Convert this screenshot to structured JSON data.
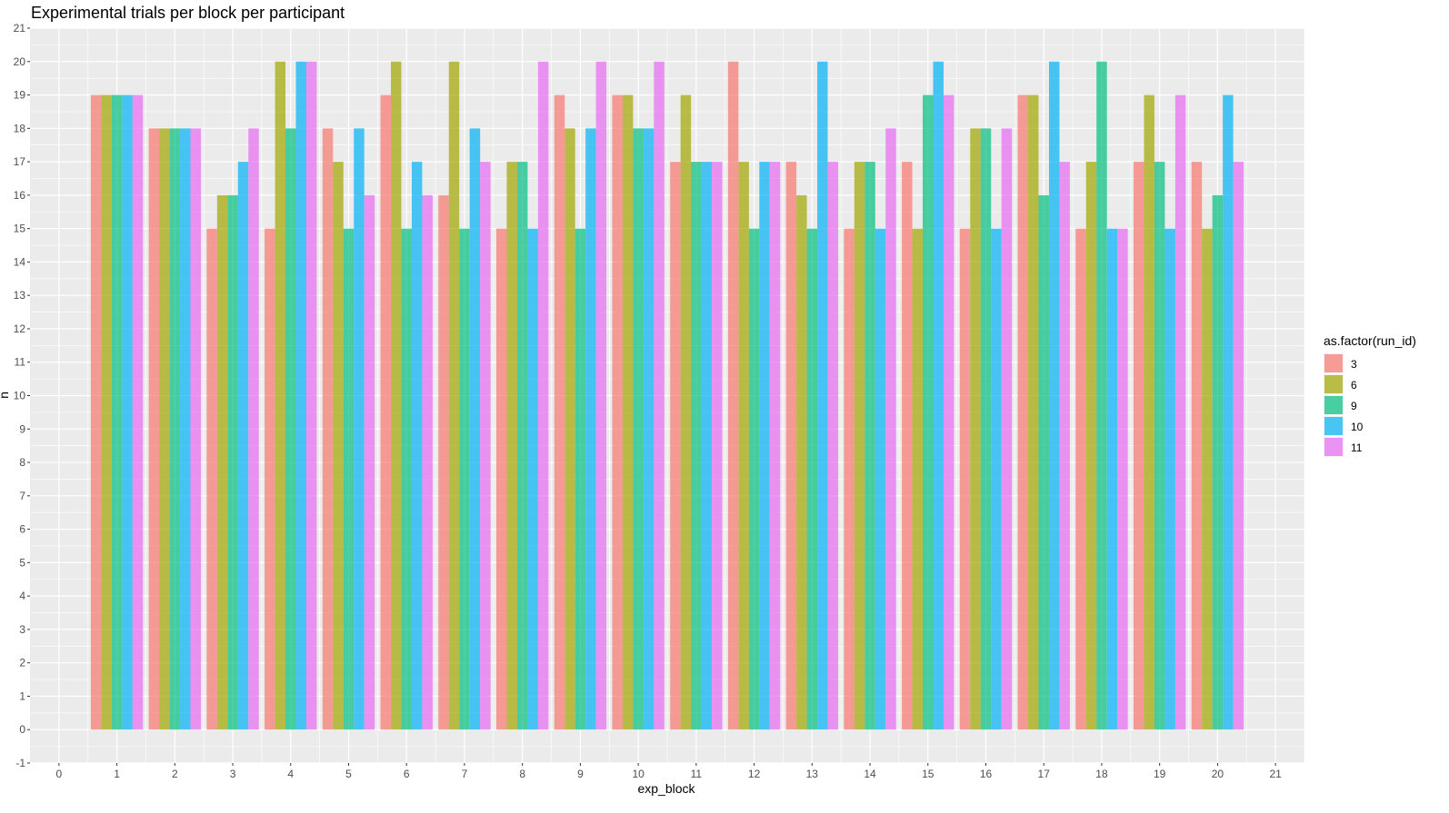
{
  "chart_data": {
    "type": "bar",
    "title": "Experimental trials per block per participant",
    "xlabel": "exp_block",
    "ylabel": "n",
    "xlim": [
      -0.5,
      21.5
    ],
    "ylim": [
      -1,
      21
    ],
    "x_ticks": [
      "0",
      "1",
      "2",
      "3",
      "4",
      "5",
      "6",
      "7",
      "8",
      "9",
      "10",
      "11",
      "12",
      "13",
      "14",
      "15",
      "16",
      "17",
      "18",
      "19",
      "20",
      "21"
    ],
    "y_ticks": [
      "-1",
      "0",
      "1",
      "2",
      "3",
      "4",
      "5",
      "6",
      "7",
      "8",
      "9",
      "10",
      "11",
      "12",
      "13",
      "14",
      "15",
      "16",
      "17",
      "18",
      "19",
      "20",
      "21"
    ],
    "categories": [
      1,
      2,
      3,
      4,
      5,
      6,
      7,
      8,
      9,
      10,
      11,
      12,
      13,
      14,
      15,
      16,
      17,
      18,
      19,
      20
    ],
    "legend_title": "as.factor(run_id)",
    "legend_position": "right",
    "grid": true,
    "series": [
      {
        "name": "3",
        "color": "#F8766D",
        "values": [
          19,
          18,
          15,
          15,
          18,
          19,
          16,
          15,
          19,
          19,
          17,
          20,
          17,
          15,
          17,
          15,
          19,
          15,
          17,
          17
        ]
      },
      {
        "name": "6",
        "color": "#A3A500",
        "values": [
          19,
          18,
          16,
          20,
          17,
          20,
          20,
          17,
          18,
          19,
          19,
          17,
          16,
          17,
          15,
          18,
          19,
          17,
          19,
          15
        ]
      },
      {
        "name": "9",
        "color": "#00BF7D",
        "values": [
          19,
          18,
          16,
          18,
          15,
          15,
          15,
          17,
          15,
          18,
          17,
          15,
          15,
          17,
          19,
          18,
          16,
          20,
          17,
          16
        ]
      },
      {
        "name": "10",
        "color": "#00B0F6",
        "values": [
          19,
          18,
          17,
          20,
          18,
          17,
          18,
          15,
          18,
          18,
          17,
          17,
          20,
          15,
          20,
          15,
          20,
          15,
          15,
          19
        ]
      },
      {
        "name": "11",
        "color": "#E76BF3",
        "values": [
          19,
          18,
          18,
          20,
          16,
          16,
          17,
          20,
          20,
          20,
          17,
          17,
          17,
          18,
          19,
          18,
          17,
          15,
          19,
          17
        ]
      }
    ]
  }
}
